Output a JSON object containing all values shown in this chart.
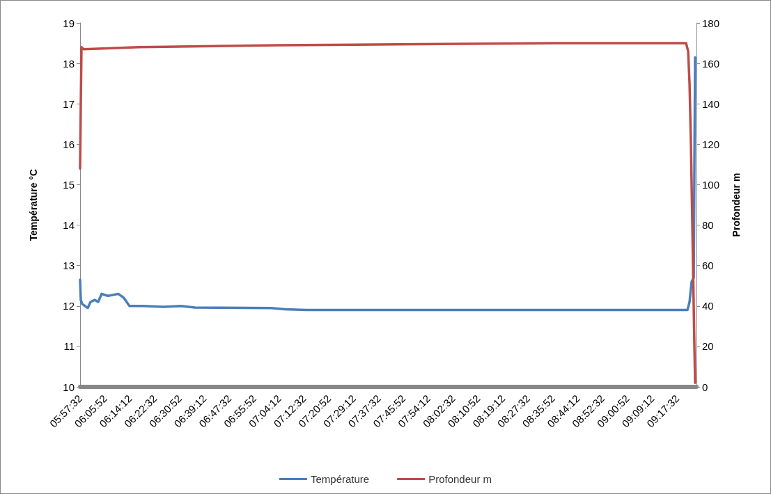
{
  "chart_data": {
    "type": "line",
    "ylabel": "Température °C",
    "y2label": "Profondeur m",
    "legend": "bottom",
    "xlim": [
      5.958889,
      9.4
    ],
    "xticks": [
      {
        "value": 5.958889,
        "label": "05:57:32"
      },
      {
        "value": 6.097778,
        "label": "06:05:52"
      },
      {
        "value": 6.236667,
        "label": "06:14:12"
      },
      {
        "value": 6.375556,
        "label": "06:22:32"
      },
      {
        "value": 6.514444,
        "label": "06:30:52"
      },
      {
        "value": 6.653333,
        "label": "06:39:12"
      },
      {
        "value": 6.792222,
        "label": "06:47:32"
      },
      {
        "value": 6.931111,
        "label": "06:55:52"
      },
      {
        "value": 7.07,
        "label": "07:04:12"
      },
      {
        "value": 7.208889,
        "label": "07:12:32"
      },
      {
        "value": 7.347778,
        "label": "07:20:52"
      },
      {
        "value": 7.486667,
        "label": "07:29:12"
      },
      {
        "value": 7.625556,
        "label": "07:37:32"
      },
      {
        "value": 7.764444,
        "label": "07:45:52"
      },
      {
        "value": 7.903333,
        "label": "07:54:12"
      },
      {
        "value": 8.042222,
        "label": "08:02:32"
      },
      {
        "value": 8.181111,
        "label": "08:10:52"
      },
      {
        "value": 8.32,
        "label": "08:19:12"
      },
      {
        "value": 8.458889,
        "label": "08:27:32"
      },
      {
        "value": 8.597778,
        "label": "08:35:52"
      },
      {
        "value": 8.736667,
        "label": "08:44:12"
      },
      {
        "value": 8.875556,
        "label": "08:52:32"
      },
      {
        "value": 9.014444,
        "label": "09:00:52"
      },
      {
        "value": 9.153333,
        "label": "09:09:12"
      },
      {
        "value": 9.292222,
        "label": "09:17:32"
      }
    ],
    "ylim": [
      10,
      19
    ],
    "yticks": [
      10,
      11,
      12,
      13,
      14,
      15,
      16,
      17,
      18,
      19
    ],
    "y2lim": [
      0,
      180
    ],
    "y2ticks": [
      0,
      20,
      40,
      60,
      80,
      100,
      120,
      140,
      160,
      180
    ],
    "series": [
      {
        "name": "Température",
        "color": "#4a7ebb",
        "x": [
          5.9589,
          5.9628,
          5.9705,
          5.986,
          6.0016,
          6.0171,
          6.0404,
          6.0598,
          6.0792,
          6.1141,
          6.1723,
          6.2033,
          6.2344,
          6.3081,
          6.4244,
          6.5214,
          6.599,
          7.0258,
          7.1034,
          7.2198,
          9.3497,
          9.3613,
          9.373,
          9.3846,
          9.3923
        ],
        "values": [
          12.65,
          12.15,
          12.05,
          12.0,
          11.95,
          12.1,
          12.15,
          12.1,
          12.3,
          12.25,
          12.3,
          12.2,
          12.0,
          12.0,
          11.98,
          12.0,
          11.96,
          11.95,
          11.92,
          11.9,
          11.9,
          12.1,
          12.6,
          12.7,
          18.15
        ]
      },
      {
        "name": "Profondeur m",
        "color": "#be4b48",
        "axis": "y2",
        "x": [
          5.9589,
          5.9628,
          5.9667,
          5.9783,
          6.2887,
          7.0646,
          7.8405,
          8.6164,
          9.3419,
          9.3535,
          9.3613,
          9.3691,
          9.3749,
          9.3807,
          9.3885,
          9.3923
        ],
        "values": [
          108,
          140,
          168,
          167,
          168,
          169,
          169.5,
          170,
          170,
          166,
          150,
          120,
          90,
          60,
          20,
          2
        ]
      }
    ]
  }
}
